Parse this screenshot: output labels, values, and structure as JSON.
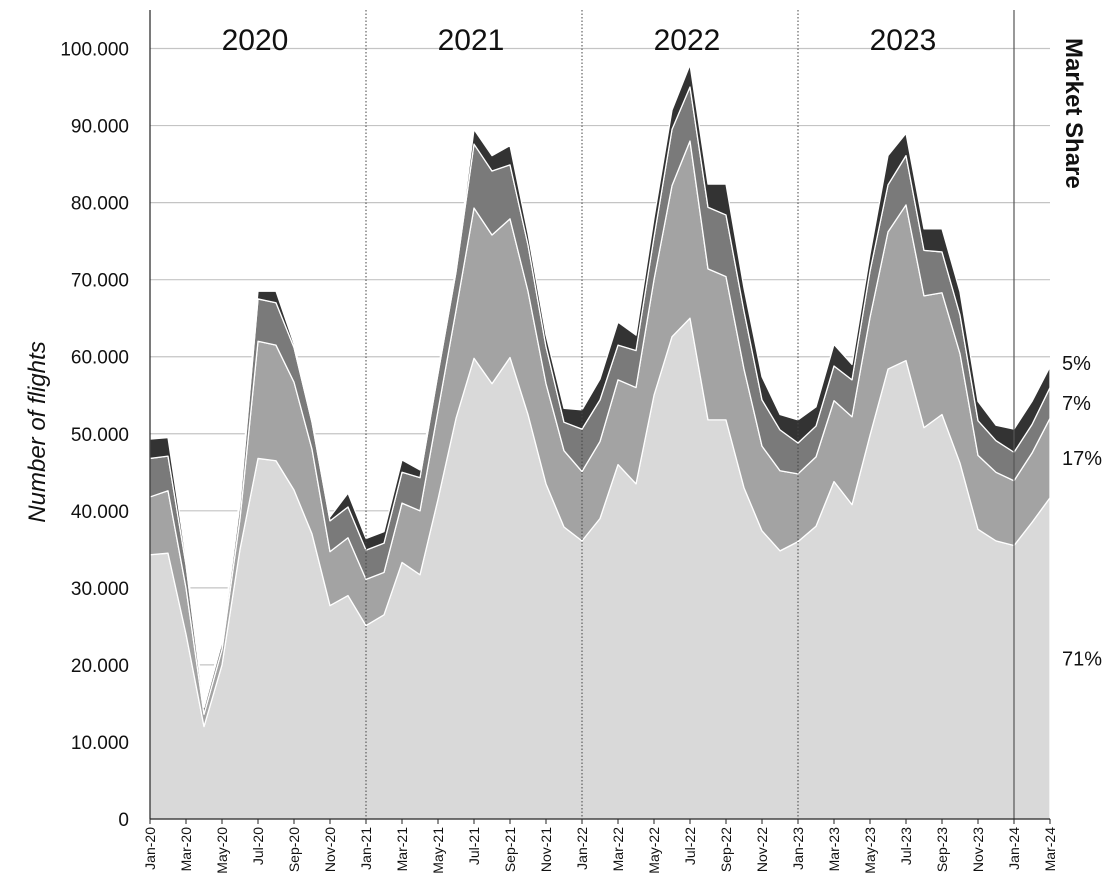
{
  "chart_data": {
    "type": "area",
    "stacked": true,
    "title": "",
    "xlabel": "",
    "ylabel": "Number of flights",
    "ylim": [
      0,
      105000
    ],
    "yticks": [
      0,
      10000,
      20000,
      30000,
      40000,
      50000,
      60000,
      70000,
      80000,
      90000,
      100000
    ],
    "ytick_labels": [
      "0",
      "10.000",
      "20.000",
      "30.000",
      "40.000",
      "50.000",
      "60.000",
      "70.000",
      "80.000",
      "90.000",
      "100.000"
    ],
    "grid": "horizontal",
    "x": [
      "Jan-20",
      "Feb-20",
      "Mar-20",
      "Apr-20",
      "May-20",
      "Jun-20",
      "Jul-20",
      "Aug-20",
      "Sep-20",
      "Oct-20",
      "Nov-20",
      "Dec-20",
      "Jan-21",
      "Feb-21",
      "Mar-21",
      "Apr-21",
      "May-21",
      "Jun-21",
      "Jul-21",
      "Aug-21",
      "Sep-21",
      "Oct-21",
      "Nov-21",
      "Dec-21",
      "Jan-22",
      "Feb-22",
      "Mar-22",
      "Apr-22",
      "May-22",
      "Jun-22",
      "Jul-22",
      "Aug-22",
      "Sep-22",
      "Oct-22",
      "Nov-22",
      "Dec-22",
      "Jan-23",
      "Feb-23",
      "Mar-23",
      "Apr-23",
      "May-23",
      "Jun-23",
      "Jul-23",
      "Aug-23",
      "Sep-23",
      "Oct-23",
      "Nov-23",
      "Dec-23",
      "Jan-24",
      "Feb-24",
      "Mar-24"
    ],
    "x_tick_labels": [
      "Jan-20",
      "Mar-20",
      "May-20",
      "Jul-20",
      "Sep-20",
      "Nov-20",
      "Jan-21",
      "Mar-21",
      "May-21",
      "Jul-21",
      "Sep-21",
      "Nov-21",
      "Jan-22",
      "Mar-22",
      "May-22",
      "Jul-22",
      "Sep-22",
      "Nov-22",
      "Jan-23",
      "Mar-23",
      "May-23",
      "Jul-23",
      "Sep-23",
      "Nov-23",
      "Jan-24",
      "Mar-24"
    ],
    "year_labels": [
      {
        "label": "2020",
        "center": "Jul-20"
      },
      {
        "label": "2021",
        "center": "Jul-21"
      },
      {
        "label": "2022",
        "center": "Jul-22"
      },
      {
        "label": "2023",
        "center": "Jul-23"
      }
    ],
    "year_dividers": [
      "Jan-21",
      "Jan-22",
      "Jan-23",
      "Jan-24"
    ],
    "series": [
      {
        "share_label": "71%",
        "color": "#d9d9d9",
        "values": [
          34300,
          34500,
          24000,
          12000,
          20000,
          35000,
          46800,
          46500,
          42700,
          37000,
          27700,
          29000,
          25100,
          26500,
          33300,
          31700,
          41500,
          52000,
          59800,
          56500,
          59900,
          52500,
          43500,
          37900,
          36100,
          39000,
          46000,
          43500,
          55000,
          62600,
          65000,
          51800,
          51800,
          43000,
          37400,
          34800,
          36000,
          38000,
          43800,
          40800,
          49800,
          58400,
          59500,
          50800,
          52500,
          46200,
          37600,
          36100,
          35500,
          38500,
          41700
        ]
      },
      {
        "share_label": "17%",
        "color": "#a3a3a3",
        "values": [
          7500,
          8100,
          6000,
          1600,
          2000,
          4000,
          15200,
          15000,
          14000,
          11000,
          7000,
          7500,
          6000,
          5500,
          7700,
          8300,
          11500,
          14000,
          19500,
          19300,
          18000,
          16000,
          13000,
          9900,
          9000,
          10000,
          11000,
          12500,
          15000,
          19600,
          23000,
          19600,
          18600,
          15400,
          11000,
          10400,
          8800,
          9000,
          10500,
          11400,
          15300,
          17800,
          20200,
          17100,
          15800,
          14200,
          9600,
          8900,
          8400,
          9000,
          10300
        ]
      },
      {
        "share_label": "7%",
        "color": "#7a7a7a",
        "values": [
          5000,
          4500,
          3000,
          900,
          1000,
          2000,
          5500,
          5500,
          4500,
          3500,
          4000,
          4000,
          3800,
          3800,
          4000,
          4300,
          4800,
          5000,
          8300,
          8300,
          7000,
          6000,
          4800,
          3700,
          5500,
          5400,
          4500,
          4800,
          5500,
          7300,
          7000,
          8000,
          8000,
          7500,
          6000,
          5300,
          4000,
          4000,
          4500,
          4800,
          6000,
          6100,
          6400,
          5900,
          5300,
          5000,
          4500,
          4100,
          3700,
          3700,
          4000
        ]
      },
      {
        "share_label": "5%",
        "color": "#333333",
        "values": [
          2500,
          2400,
          1000,
          400,
          500,
          1000,
          1000,
          1500,
          500,
          500,
          500,
          1800,
          1500,
          1500,
          1600,
          1000,
          500,
          500,
          1900,
          2000,
          2500,
          1500,
          1500,
          1800,
          2500,
          2700,
          3000,
          2000,
          2500,
          2500,
          2900,
          3000,
          4000,
          3000,
          3000,
          2000,
          3000,
          2500,
          2800,
          2000,
          2200,
          3800,
          2900,
          2800,
          3000,
          3000,
          2500,
          2000,
          3000,
          3000,
          2700
        ]
      }
    ],
    "share_title": "Market Share"
  }
}
